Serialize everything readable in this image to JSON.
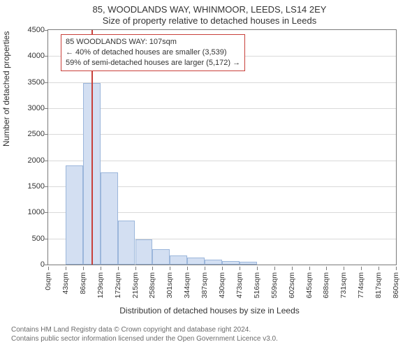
{
  "chart": {
    "type": "histogram",
    "title_line1": "85, WOODLANDS WAY, WHINMOOR, LEEDS, LS14 2EY",
    "title_line2": "Size of property relative to detached houses in Leeds",
    "xlabel": "Distribution of detached houses by size in Leeds",
    "ylabel": "Number of detached properties",
    "title_fontsize": 13,
    "axis_label_fontsize": 12,
    "tick_fontsize": 11,
    "background_color": "#ffffff",
    "border_color": "#7a7a7a",
    "grid_color": "#d9d9d9",
    "bar_fill": "#d3dff2",
    "bar_stroke": "#9bb6db",
    "marker_color": "#c8403a",
    "xlim": [
      0,
      860
    ],
    "ylim": [
      0,
      4500
    ],
    "ytick_step": 500,
    "yticks": [
      0,
      500,
      1000,
      1500,
      2000,
      2500,
      3000,
      3500,
      4000,
      4500
    ],
    "xticks": [
      0,
      43,
      86,
      129,
      172,
      215,
      258,
      301,
      344,
      387,
      430,
      473,
      516,
      559,
      602,
      645,
      688,
      731,
      774,
      817,
      860
    ],
    "xtick_labels": [
      "0sqm",
      "43sqm",
      "86sqm",
      "129sqm",
      "172sqm",
      "215sqm",
      "258sqm",
      "301sqm",
      "344sqm",
      "387sqm",
      "430sqm",
      "473sqm",
      "516sqm",
      "559sqm",
      "602sqm",
      "645sqm",
      "688sqm",
      "731sqm",
      "774sqm",
      "817sqm",
      "860sqm"
    ],
    "bin_width": 43,
    "bins_start": [
      43,
      86,
      129,
      172,
      215,
      258,
      301,
      344,
      387,
      430,
      473
    ],
    "counts": [
      1900,
      3480,
      1770,
      850,
      480,
      300,
      170,
      140,
      90,
      70,
      60
    ],
    "marker_value": 107,
    "infobox": {
      "line1": "85 WOODLANDS WAY: 107sqm",
      "line2": "← 40% of detached houses are smaller (3,539)",
      "line3": "59% of semi-detached houses are larger (5,172) →"
    }
  },
  "footer": {
    "line1": "Contains HM Land Registry data © Crown copyright and database right 2024.",
    "line2": "Contains public sector information licensed under the Open Government Licence v3.0."
  }
}
